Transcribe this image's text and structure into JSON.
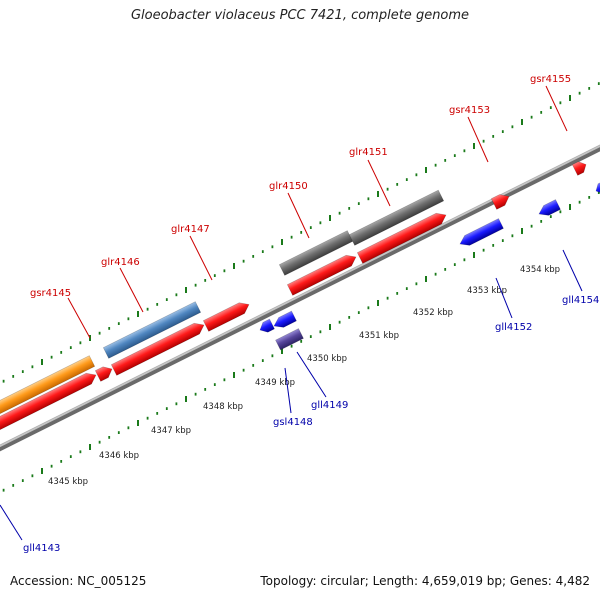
{
  "title": "Gloeobacter violaceus PCC 7421, complete genome",
  "accession_text": "Accession: NC_005125",
  "topology_text": "Topology: circular; Length: 4,659,019 bp; Genes: 4,482",
  "colors": {
    "forward_label": "#cc0000",
    "reverse_label": "#0000aa",
    "backbone": "#8a8a8a",
    "ticks": "#1a7a1a",
    "red_cds": "#ff1a1a",
    "blue_cds": "#1a1aff",
    "gray_feature": "#6e6e6e",
    "steelblue_feature": "#4f86c0",
    "orange_feature": "#ff9a1a",
    "purple_feature": "#55449a"
  },
  "scale_labels": [
    "4345 kbp",
    "4346 kbp",
    "4347 kbp",
    "4348 kbp",
    "4349 kbp",
    "4350 kbp",
    "4351 kbp",
    "4352 kbp",
    "4353 kbp",
    "4354 kbp"
  ],
  "forward_genes": [
    "gsr4145",
    "glr4146",
    "glr4147",
    "glr4150",
    "glr4151",
    "gsr4153",
    "gsr4155"
  ],
  "reverse_genes": [
    "gll4143",
    "gsl4148",
    "gll4149",
    "gll4152",
    "gll4154"
  ]
}
